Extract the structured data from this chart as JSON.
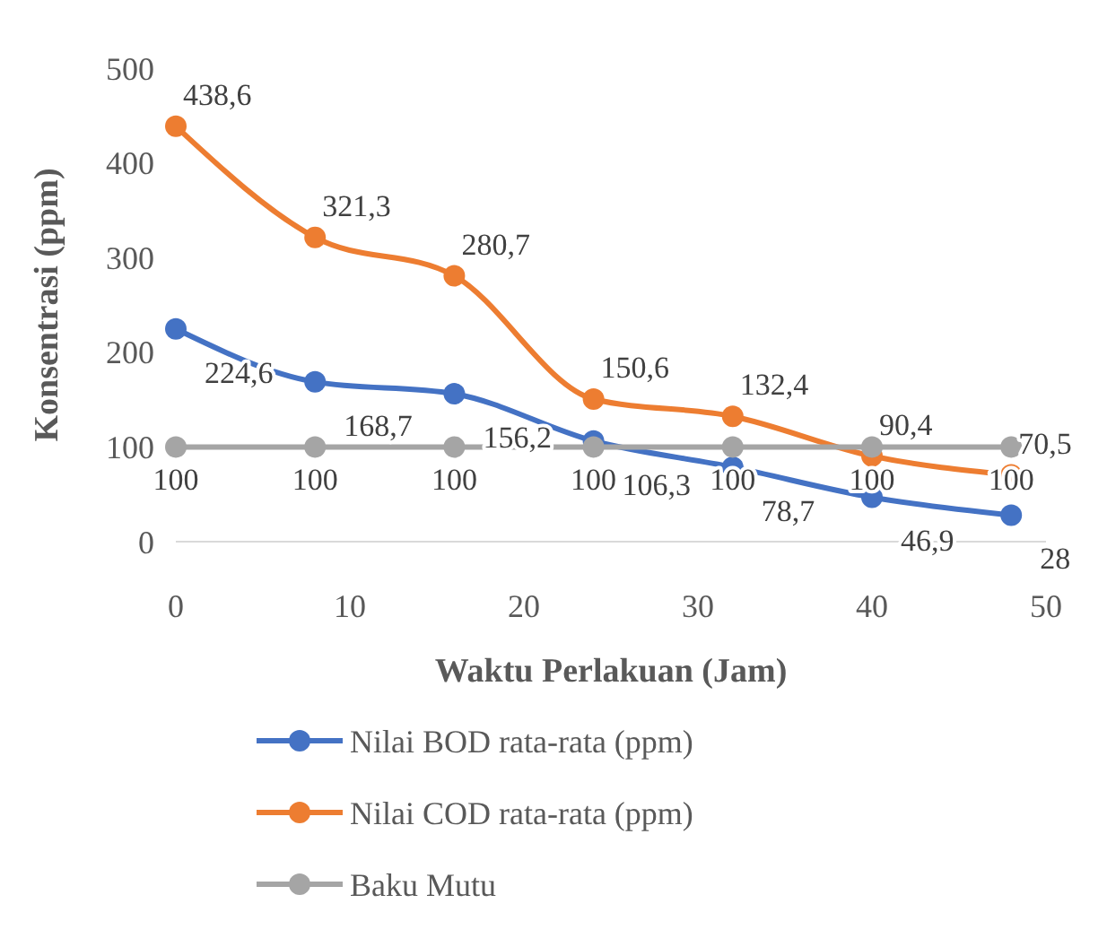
{
  "chart_data": {
    "type": "line",
    "xlabel": "Waktu Perlakuan (Jam)",
    "ylabel": "Konsentrasi (ppm)",
    "x": [
      0,
      8,
      16,
      24,
      32,
      40,
      48
    ],
    "series": [
      {
        "name": "Nilai BOD rata-rata (ppm)",
        "color": "#4472c4",
        "values": [
          224.6,
          168.7,
          156.2,
          106.3,
          78.7,
          46.9,
          28
        ],
        "value_labels": [
          "224,6",
          "168,7",
          "156,2",
          "106,3",
          "78,7",
          "46,9",
          "28"
        ]
      },
      {
        "name": "Nilai COD rata-rata (ppm)",
        "color": "#ed7d31",
        "values": [
          438.6,
          321.3,
          280.7,
          150.6,
          132.4,
          90.4,
          70.5
        ],
        "value_labels": [
          "438,6",
          "321,3",
          "280,7",
          "150,6",
          "132,4",
          "90,4",
          "70,5"
        ]
      },
      {
        "name": "Baku Mutu",
        "color": "#a5a5a5",
        "values": [
          100,
          100,
          100,
          100,
          100,
          100,
          100
        ],
        "value_labels": [
          "100",
          "100",
          "100",
          "100",
          "100",
          "100",
          "100"
        ]
      }
    ],
    "xlim": [
      0,
      50
    ],
    "xticks": [
      0,
      10,
      20,
      30,
      40,
      50
    ],
    "ylim": [
      0,
      500
    ],
    "yticks": [
      0,
      100,
      200,
      300,
      400,
      500
    ],
    "legend": "bottom",
    "marker": "circle"
  }
}
